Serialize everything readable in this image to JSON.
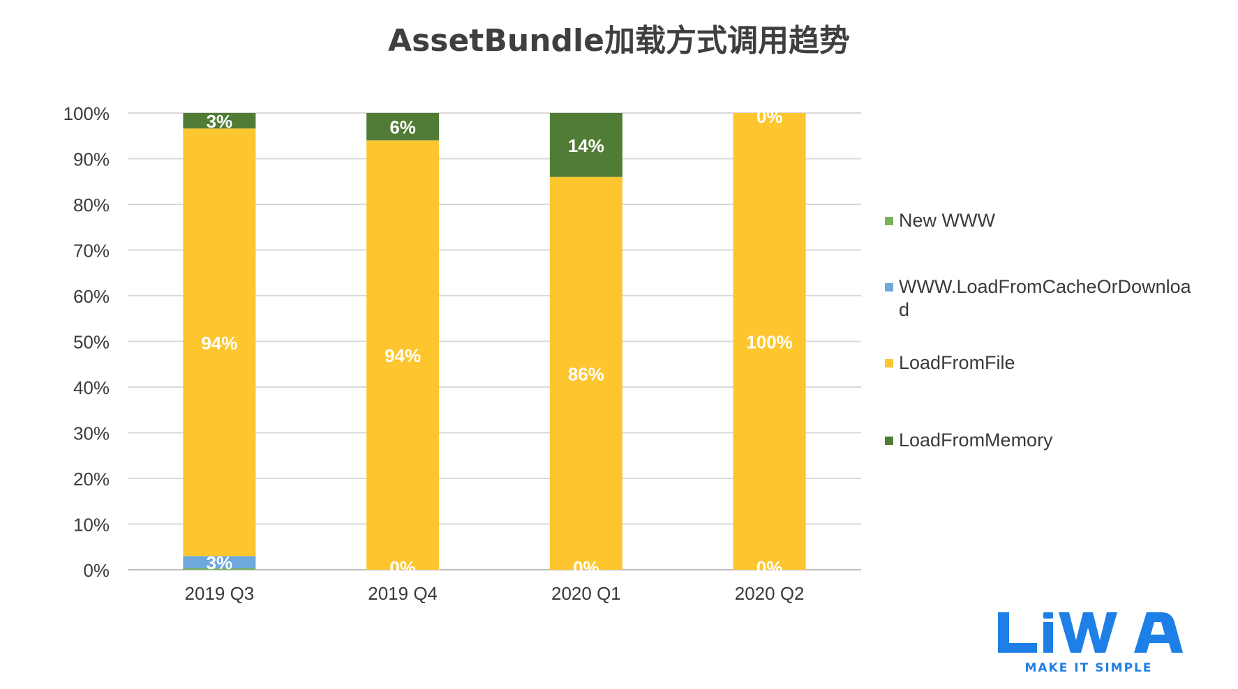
{
  "chart_data": {
    "type": "bar",
    "stacked": true,
    "title": "AssetBundle加载方式调用趋势",
    "categories": [
      "2019 Q3",
      "2019 Q4",
      "2020 Q1",
      "2020 Q2"
    ],
    "series": [
      {
        "name": "New WWW",
        "color": "#77b255",
        "values": [
          0.3,
          0,
          0,
          0
        ],
        "labels": [
          "",
          "",
          "",
          ""
        ]
      },
      {
        "name": "WWW.LoadFromCacheOrDownload",
        "color": "#6fa8dc",
        "values": [
          2.7,
          0,
          0,
          0
        ],
        "labels": [
          "3%",
          "0%",
          "0%",
          "0%"
        ]
      },
      {
        "name": "LoadFromFile",
        "color": "#fdc62f",
        "values": [
          93.6,
          94,
          86,
          100
        ],
        "labels": [
          "94%",
          "94%",
          "86%",
          "100%"
        ]
      },
      {
        "name": "LoadFromMemory",
        "color": "#507c36",
        "values": [
          3.4,
          6,
          14,
          0
        ],
        "labels": [
          "3%",
          "6%",
          "14%",
          "0%"
        ]
      }
    ],
    "yticks": [
      "0%",
      "10%",
      "20%",
      "30%",
      "40%",
      "50%",
      "60%",
      "70%",
      "80%",
      "90%",
      "100%"
    ],
    "ylim": [
      0,
      100
    ],
    "grid": true,
    "legend_position": "right"
  },
  "logo": {
    "text": "LiWA",
    "tagline": "MAKE IT SIMPLE",
    "color": "#1e7fe6"
  }
}
